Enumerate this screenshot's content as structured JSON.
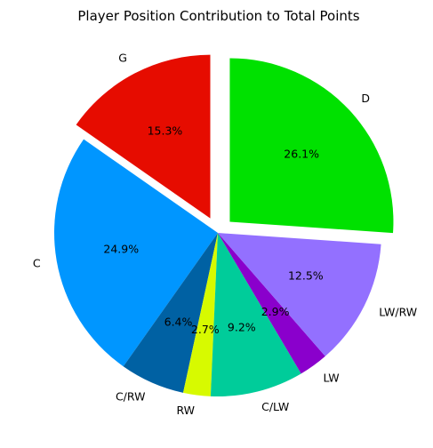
{
  "chart_data": {
    "type": "pie",
    "title": "Player Position Contribution to Total Points",
    "start_angle_deg": 90,
    "direction": "counterclockwise",
    "slices": [
      {
        "label": "G",
        "value": 15.3,
        "pct_label": "15.3%",
        "color": "#e60c00",
        "exploded": true
      },
      {
        "label": "C",
        "value": 24.9,
        "pct_label": "24.9%",
        "color": "#0096ff",
        "exploded": false
      },
      {
        "label": "C/RW",
        "value": 6.4,
        "pct_label": "6.4%",
        "color": "#0061a3",
        "exploded": false
      },
      {
        "label": "RW",
        "value": 2.7,
        "pct_label": "2.7%",
        "color": "#d7fa00",
        "exploded": false
      },
      {
        "label": "C/LW",
        "value": 9.2,
        "pct_label": "9.2%",
        "color": "#00cc9a",
        "exploded": false
      },
      {
        "label": "LW",
        "value": 2.9,
        "pct_label": "2.9%",
        "color": "#8a00cc",
        "exploded": false
      },
      {
        "label": "LW/RW",
        "value": 12.5,
        "pct_label": "12.5%",
        "color": "#9370ff",
        "exploded": false
      },
      {
        "label": "D",
        "value": 26.1,
        "pct_label": "26.1%",
        "color": "#00e100",
        "exploded": true
      }
    ]
  }
}
